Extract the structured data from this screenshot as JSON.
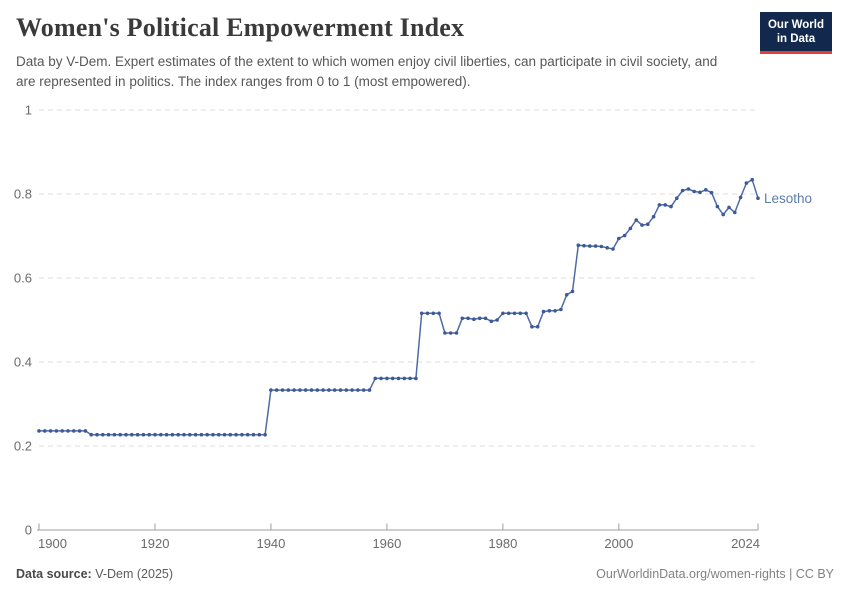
{
  "header": {
    "title": "Women's Political Empowerment Index",
    "subtitle": "Data by V-Dem. Expert estimates of the extent to which women enjoy civil liberties, can participate in civil society, and are represented in politics. The index ranges from 0 to 1 (most empowered).",
    "logo": {
      "line1": "Our World",
      "line2": "in Data"
    }
  },
  "footer": {
    "source_label": "Data source:",
    "source_value": " V-Dem (2025)",
    "credit": "OurWorldinData.org/women-rights | CC BY"
  },
  "colors": {
    "line": "#4e6ba6",
    "point": "#3d5a96",
    "entity_label": "#5e7ca9",
    "grid": "#dcdcdc",
    "axis": "#9e9e9e",
    "tick_text": "#6b6b6b",
    "logo_bg": "#12294d",
    "logo_bar": "#e0403a"
  },
  "chart_data": {
    "type": "line",
    "title": "Women's Political Empowerment Index",
    "xlabel": "",
    "ylabel": "",
    "xlim": [
      1900,
      2024
    ],
    "ylim": [
      0,
      1
    ],
    "x_ticks": [
      1900,
      1920,
      1940,
      1960,
      1980,
      2000,
      2024
    ],
    "x_tick_labels": [
      "1900",
      "1920",
      "1940",
      "1960",
      "1980",
      "2000",
      "2024"
    ],
    "y_ticks": [
      0,
      0.2,
      0.4,
      0.6,
      0.8,
      1
    ],
    "y_tick_labels": [
      "0",
      "0.2",
      "0.4",
      "0.6",
      "0.8",
      "1"
    ],
    "grid": "dashed-horizontal",
    "legend_position": "end-of-line-label",
    "series": [
      {
        "name": "Lesotho",
        "points": [
          [
            1900,
            0.236
          ],
          [
            1901,
            0.236
          ],
          [
            1902,
            0.236
          ],
          [
            1903,
            0.236
          ],
          [
            1904,
            0.236
          ],
          [
            1905,
            0.236
          ],
          [
            1906,
            0.236
          ],
          [
            1907,
            0.236
          ],
          [
            1908,
            0.236
          ],
          [
            1909,
            0.227
          ],
          [
            1910,
            0.227
          ],
          [
            1911,
            0.227
          ],
          [
            1912,
            0.227
          ],
          [
            1913,
            0.227
          ],
          [
            1914,
            0.227
          ],
          [
            1915,
            0.227
          ],
          [
            1916,
            0.227
          ],
          [
            1917,
            0.227
          ],
          [
            1918,
            0.227
          ],
          [
            1919,
            0.227
          ],
          [
            1920,
            0.227
          ],
          [
            1921,
            0.227
          ],
          [
            1922,
            0.227
          ],
          [
            1923,
            0.227
          ],
          [
            1924,
            0.227
          ],
          [
            1925,
            0.227
          ],
          [
            1926,
            0.227
          ],
          [
            1927,
            0.227
          ],
          [
            1928,
            0.227
          ],
          [
            1929,
            0.227
          ],
          [
            1930,
            0.227
          ],
          [
            1931,
            0.227
          ],
          [
            1932,
            0.227
          ],
          [
            1933,
            0.227
          ],
          [
            1934,
            0.227
          ],
          [
            1935,
            0.227
          ],
          [
            1936,
            0.227
          ],
          [
            1937,
            0.227
          ],
          [
            1938,
            0.227
          ],
          [
            1939,
            0.227
          ],
          [
            1940,
            0.333
          ],
          [
            1941,
            0.333
          ],
          [
            1942,
            0.333
          ],
          [
            1943,
            0.333
          ],
          [
            1944,
            0.333
          ],
          [
            1945,
            0.333
          ],
          [
            1946,
            0.333
          ],
          [
            1947,
            0.333
          ],
          [
            1948,
            0.333
          ],
          [
            1949,
            0.333
          ],
          [
            1950,
            0.333
          ],
          [
            1951,
            0.333
          ],
          [
            1952,
            0.333
          ],
          [
            1953,
            0.333
          ],
          [
            1954,
            0.333
          ],
          [
            1955,
            0.333
          ],
          [
            1956,
            0.333
          ],
          [
            1957,
            0.333
          ],
          [
            1958,
            0.361
          ],
          [
            1959,
            0.361
          ],
          [
            1960,
            0.361
          ],
          [
            1961,
            0.361
          ],
          [
            1962,
            0.361
          ],
          [
            1963,
            0.361
          ],
          [
            1964,
            0.361
          ],
          [
            1965,
            0.361
          ],
          [
            1966,
            0.516
          ],
          [
            1967,
            0.516
          ],
          [
            1968,
            0.516
          ],
          [
            1969,
            0.516
          ],
          [
            1970,
            0.469
          ],
          [
            1971,
            0.469
          ],
          [
            1972,
            0.469
          ],
          [
            1973,
            0.504
          ],
          [
            1974,
            0.504
          ],
          [
            1975,
            0.502
          ],
          [
            1976,
            0.504
          ],
          [
            1977,
            0.504
          ],
          [
            1978,
            0.497
          ],
          [
            1979,
            0.5
          ],
          [
            1980,
            0.516
          ],
          [
            1981,
            0.516
          ],
          [
            1982,
            0.516
          ],
          [
            1983,
            0.516
          ],
          [
            1984,
            0.516
          ],
          [
            1985,
            0.484
          ],
          [
            1986,
            0.484
          ],
          [
            1987,
            0.52
          ],
          [
            1988,
            0.522
          ],
          [
            1989,
            0.522
          ],
          [
            1990,
            0.525
          ],
          [
            1991,
            0.56
          ],
          [
            1992,
            0.568
          ],
          [
            1993,
            0.678
          ],
          [
            1994,
            0.677
          ],
          [
            1995,
            0.676
          ],
          [
            1996,
            0.676
          ],
          [
            1997,
            0.675
          ],
          [
            1998,
            0.672
          ],
          [
            1999,
            0.669
          ],
          [
            2000,
            0.694
          ],
          [
            2001,
            0.701
          ],
          [
            2002,
            0.718
          ],
          [
            2003,
            0.738
          ],
          [
            2004,
            0.726
          ],
          [
            2005,
            0.728
          ],
          [
            2006,
            0.746
          ],
          [
            2007,
            0.774
          ],
          [
            2008,
            0.774
          ],
          [
            2009,
            0.77
          ],
          [
            2010,
            0.79
          ],
          [
            2011,
            0.808
          ],
          [
            2012,
            0.812
          ],
          [
            2013,
            0.806
          ],
          [
            2014,
            0.804
          ],
          [
            2015,
            0.81
          ],
          [
            2016,
            0.803
          ],
          [
            2017,
            0.77
          ],
          [
            2018,
            0.751
          ],
          [
            2019,
            0.768
          ],
          [
            2020,
            0.756
          ],
          [
            2021,
            0.792
          ],
          [
            2022,
            0.826
          ],
          [
            2023,
            0.834
          ],
          [
            2024,
            0.79
          ]
        ]
      }
    ]
  }
}
